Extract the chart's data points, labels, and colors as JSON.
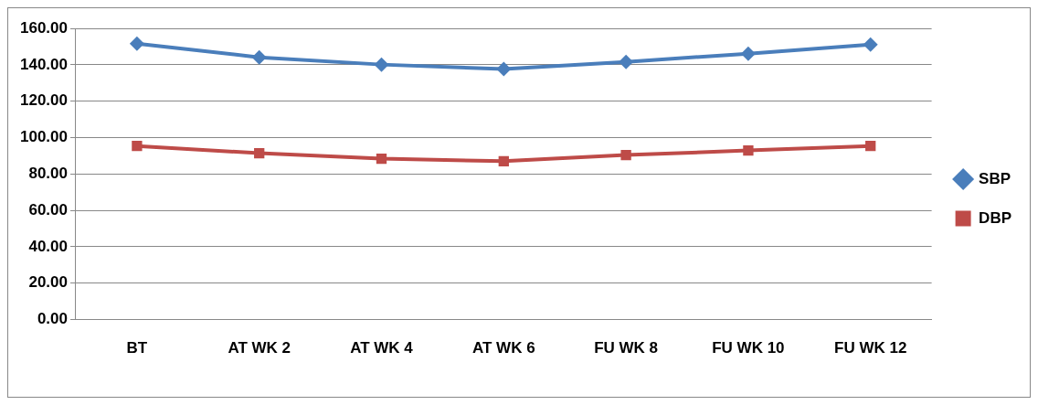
{
  "chart_data": {
    "type": "line",
    "categories": [
      "BT",
      "AT WK 2",
      "AT WK 4",
      "AT WK 6",
      "FU WK 8",
      "FU WK 10",
      "FU WK 12"
    ],
    "series": [
      {
        "name": "SBP",
        "color": "#4a7ebb",
        "marker": "diamond",
        "values": [
          151.6,
          144.1,
          140.1,
          137.6,
          141.6,
          146.1,
          151.1
        ]
      },
      {
        "name": "DBP",
        "color": "#be4b48",
        "marker": "square",
        "values": [
          95.4,
          91.4,
          88.4,
          87.0,
          90.4,
          92.9,
          95.4
        ]
      }
    ],
    "ylim": [
      0,
      160
    ],
    "yticks": [
      {
        "value": 0,
        "label": "0.00"
      },
      {
        "value": 20,
        "label": "20.00"
      },
      {
        "value": 40,
        "label": "40.00"
      },
      {
        "value": 60,
        "label": "60.00"
      },
      {
        "value": 80,
        "label": "80.00"
      },
      {
        "value": 100,
        "label": "100.00"
      },
      {
        "value": 120,
        "label": "120.00"
      },
      {
        "value": 140,
        "label": "140.00"
      },
      {
        "value": 160,
        "label": "160.00"
      }
    ],
    "grid": "y",
    "legend": "right",
    "line_style": "solid"
  }
}
